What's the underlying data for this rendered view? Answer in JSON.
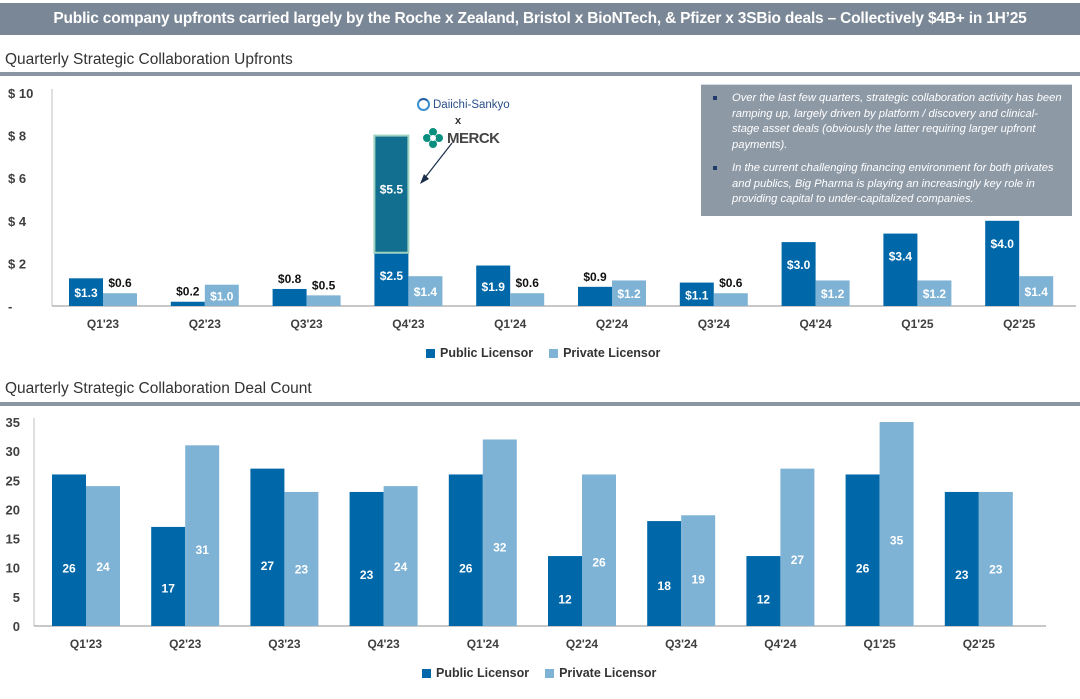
{
  "banner": {
    "title": "Public company upfronts carried largely by the Roche x Zealand, Bristol x BioNTech, & Pfizer x 3SBio deals – Collectively $4B+ in 1H’25"
  },
  "colors": {
    "public": "#0068a8",
    "private": "#7fb3d5",
    "highlight": "#136f8f",
    "highlight_border": "#9fd3c0",
    "banner": "#7a8796"
  },
  "annotation": {
    "company_a": "Daiichi-Sankyo",
    "connector": "x",
    "company_b": "MERCK",
    "icon_a": "daiichi-sankyo-logo-icon",
    "icon_b": "merck-logo-icon"
  },
  "notes": [
    "Over the last few quarters, strategic collaboration activity has been ramping up, largely driven by platform / discovery and clinical-stage asset deals (obviously the latter requiring larger upfront payments).",
    "In the current challenging financing environment for both privates and publics, Big Pharma is playing an increasingly key role in providing capital to under-capitalized companies."
  ],
  "legend": {
    "public": "Public Licensor",
    "private": "Private Licensor"
  },
  "chart_data": [
    {
      "type": "bar",
      "title": "Quarterly Strategic Collaboration Upfronts",
      "xlabel": "",
      "ylabel": "",
      "ylim": [
        0,
        10
      ],
      "yticks": [
        0,
        2,
        4,
        6,
        8,
        10
      ],
      "ytick_labels": [
        "-",
        "$ 2",
        "$ 4",
        "$ 6",
        "$ 8",
        "$ 10"
      ],
      "grid": false,
      "legend_position": "bottom-center",
      "categories": [
        "Q1'23",
        "Q2'23",
        "Q3'23",
        "Q4'23",
        "Q1'24",
        "Q2'24",
        "Q3'24",
        "Q4'24",
        "Q1'25",
        "Q2'25"
      ],
      "series": [
        {
          "name": "Public Licensor",
          "values": [
            1.3,
            0.2,
            0.8,
            2.5,
            1.9,
            0.9,
            1.1,
            3.0,
            3.4,
            4.0
          ],
          "labels": [
            "$1.3",
            "$0.2",
            "$0.8",
            "$2.5",
            "$1.9",
            "$0.9",
            "$1.1",
            "$3.0",
            "$3.4",
            "$4.0"
          ]
        },
        {
          "name": "Private Licensor",
          "values": [
            0.6,
            1.0,
            0.5,
            1.4,
            0.6,
            1.2,
            0.6,
            1.2,
            1.2,
            1.4
          ],
          "labels": [
            "$0.6",
            "$1.0",
            "$0.5",
            "$1.4",
            "$0.6",
            "$1.2",
            "$0.6",
            "$1.2",
            "$1.2",
            "$1.4"
          ]
        }
      ],
      "highlight": {
        "category": "Q4'23",
        "value": 5.5,
        "label": "$5.5",
        "note": "Daiichi-Sankyo x Merck deal stacked on public licensor bar"
      }
    },
    {
      "type": "bar",
      "title": "Quarterly Strategic Collaboration Deal Count",
      "xlabel": "",
      "ylabel": "",
      "ylim": [
        0,
        35
      ],
      "yticks": [
        0,
        5,
        10,
        15,
        20,
        25,
        30,
        35
      ],
      "ytick_labels": [
        "0",
        "5",
        "10",
        "15",
        "20",
        "25",
        "30",
        "35"
      ],
      "grid": false,
      "legend_position": "bottom-center",
      "categories": [
        "Q1'23",
        "Q2'23",
        "Q3'23",
        "Q4'23",
        "Q1'24",
        "Q2'24",
        "Q3'24",
        "Q4'24",
        "Q1'25",
        "Q2'25"
      ],
      "series": [
        {
          "name": "Public Licensor",
          "values": [
            26,
            17,
            27,
            23,
            26,
            12,
            18,
            12,
            26,
            23
          ],
          "labels": [
            "26",
            "17",
            "27",
            "23",
            "26",
            "12",
            "18",
            "12",
            "26",
            "23"
          ]
        },
        {
          "name": "Private Licensor",
          "values": [
            24,
            31,
            23,
            24,
            32,
            26,
            19,
            27,
            35,
            23
          ],
          "labels": [
            "24",
            "31",
            "23",
            "24",
            "32",
            "26",
            "19",
            "27",
            "35",
            "23"
          ]
        }
      ]
    }
  ]
}
